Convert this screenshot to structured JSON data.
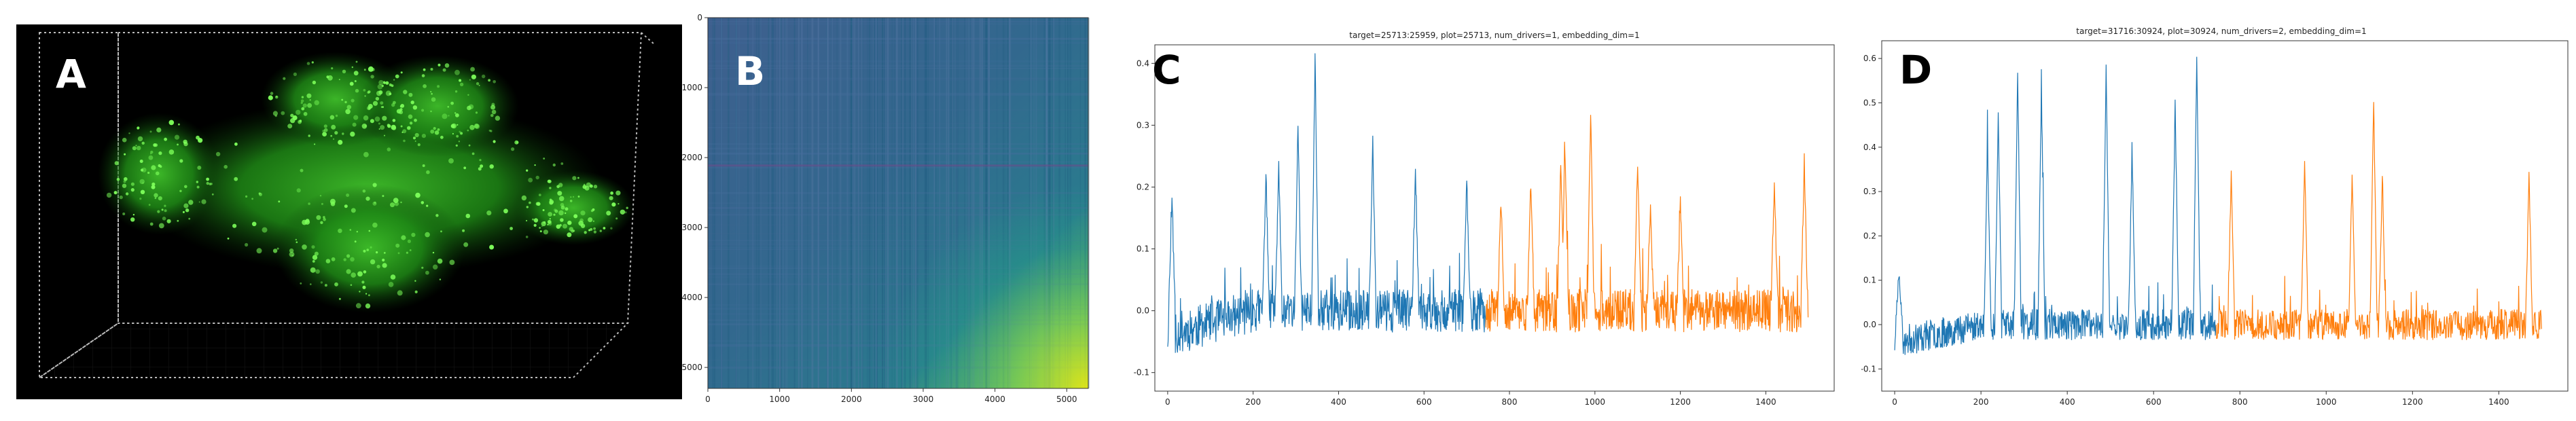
{
  "panels": [
    {
      "letter": "A"
    },
    {
      "letter": "B"
    },
    {
      "letter": "C"
    },
    {
      "letter": "D"
    }
  ],
  "chart_data": [
    {
      "type": "heatmap",
      "colormap": "viridis",
      "x_ticks": [
        0,
        1000,
        2000,
        3000,
        4000,
        5000
      ],
      "y_ticks": [
        0,
        1000,
        2000,
        3000,
        4000,
        5000
      ],
      "xlim": [
        0,
        5300
      ],
      "ylim": [
        5300,
        0
      ]
    },
    {
      "type": "line",
      "title": "target=25713:25959, plot=25713, num_drivers=1, embedding_dim=1",
      "x_ticks": [
        0,
        200,
        400,
        600,
        800,
        1000,
        1200,
        1400
      ],
      "y_ticks": [
        -0.1,
        0.0,
        0.1,
        0.2,
        0.3,
        0.4
      ],
      "y_tick_labels": [
        "-0.1",
        "0.0",
        "0.1",
        "0.2",
        "0.3",
        "0.4"
      ],
      "xlim": [
        -30,
        1560
      ],
      "ylim": [
        -0.13,
        0.43
      ],
      "split_x": 745,
      "n_points": 1500,
      "series": [
        {
          "color": "#1f77b4",
          "x_range": [
            0,
            745
          ]
        },
        {
          "color": "#ff7f0e",
          "x_range": [
            745,
            1500
          ]
        }
      ],
      "peaks": [
        [
          10,
          0.17
        ],
        [
          230,
          0.22
        ],
        [
          260,
          0.23
        ],
        [
          305,
          0.3
        ],
        [
          345,
          0.41
        ],
        [
          480,
          0.27
        ],
        [
          580,
          0.23
        ],
        [
          700,
          0.21
        ],
        [
          780,
          0.18
        ],
        [
          850,
          0.21
        ],
        [
          920,
          0.24
        ],
        [
          930,
          0.26
        ],
        [
          990,
          0.32
        ],
        [
          1100,
          0.24
        ],
        [
          1130,
          0.16
        ],
        [
          1200,
          0.17
        ],
        [
          1420,
          0.21
        ],
        [
          1490,
          0.24
        ]
      ]
    },
    {
      "type": "line",
      "title": "target=31716:30924, plot=30924, num_drivers=2, embedding_dim=1",
      "x_ticks": [
        0,
        200,
        400,
        600,
        800,
        1000,
        1200,
        1400
      ],
      "y_ticks": [
        -0.1,
        0.0,
        0.1,
        0.2,
        0.3,
        0.4,
        0.5,
        0.6
      ],
      "y_tick_labels": [
        "-0.1",
        "0.0",
        "0.1",
        "0.2",
        "0.3",
        "0.4",
        "0.5",
        "0.6"
      ],
      "xlim": [
        -30,
        1560
      ],
      "ylim": [
        -0.15,
        0.64
      ],
      "split_x": 745,
      "n_points": 1500,
      "series": [
        {
          "color": "#1f77b4",
          "x_range": [
            0,
            745
          ]
        },
        {
          "color": "#ff7f0e",
          "x_range": [
            745,
            1500
          ]
        }
      ],
      "peaks": [
        [
          10,
          0.12
        ],
        [
          215,
          0.4
        ],
        [
          240,
          0.47
        ],
        [
          285,
          0.58
        ],
        [
          340,
          0.52
        ],
        [
          490,
          0.58
        ],
        [
          550,
          0.4
        ],
        [
          650,
          0.5
        ],
        [
          700,
          0.61
        ],
        [
          780,
          0.35
        ],
        [
          950,
          0.37
        ],
        [
          1060,
          0.34
        ],
        [
          1110,
          0.51
        ],
        [
          1130,
          0.33
        ],
        [
          1470,
          0.33
        ]
      ]
    }
  ]
}
